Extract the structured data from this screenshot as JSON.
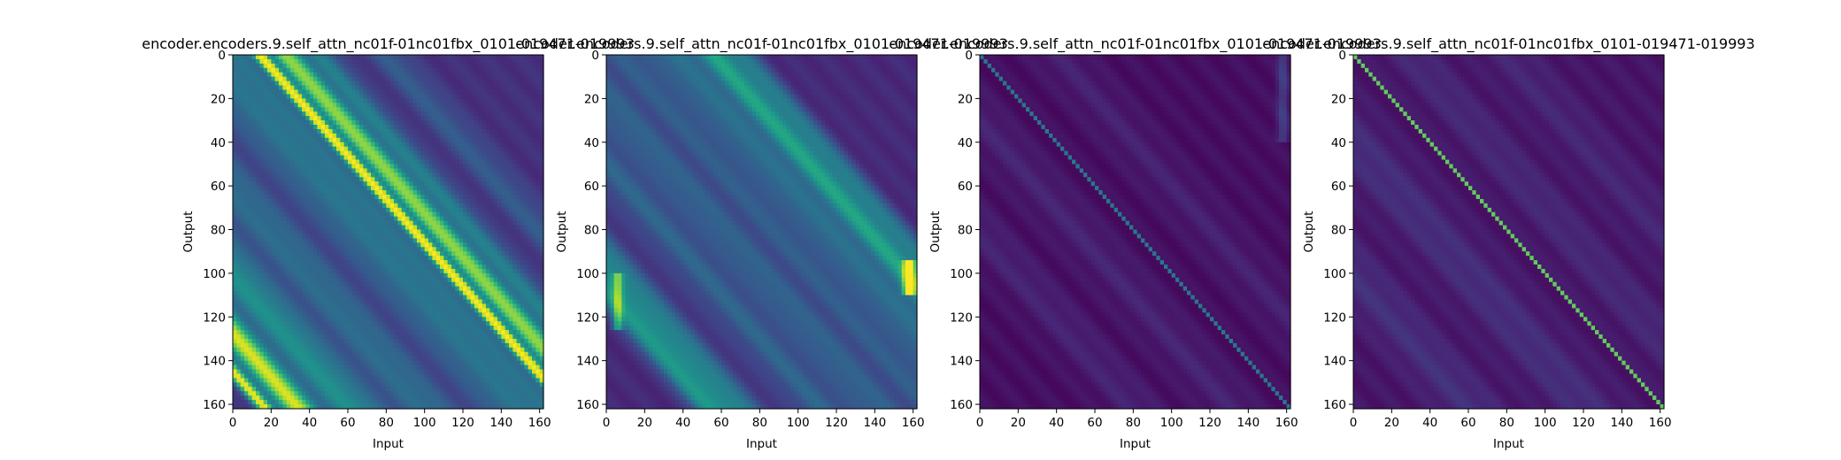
{
  "chart_data": [
    {
      "type": "heatmap",
      "title": "encoder.encoders.9.self_attn_nc01f-01nc01fbx_0101-019471-019993",
      "xlabel": "Input",
      "ylabel": "Output",
      "xlim": [
        0,
        162
      ],
      "ylim": [
        162,
        0
      ],
      "xticks": [
        0,
        20,
        40,
        60,
        80,
        100,
        120,
        140,
        160
      ],
      "yticks": [
        0,
        20,
        40,
        60,
        80,
        100,
        120,
        140,
        160
      ],
      "colormap": "viridis",
      "diagonal_bands": [
        {
          "offset": 14,
          "width": 2.6,
          "strength": 0.95
        },
        {
          "offset": 30,
          "width": 4.0,
          "strength": 0.55
        },
        {
          "offset": 24,
          "width": 3.5,
          "strength": 0.4
        },
        {
          "offset": 45,
          "width": 6.0,
          "strength": 0.3
        },
        {
          "offset": 0,
          "width": 9.0,
          "strength": 0.22
        },
        {
          "offset": -20,
          "width": 10.0,
          "strength": 0.2
        },
        {
          "offset": -60,
          "width": 12.0,
          "strength": 0.22
        },
        {
          "offset": -100,
          "width": 12.0,
          "strength": 0.35
        },
        {
          "offset": -128,
          "width": 6.0,
          "strength": 0.8
        },
        {
          "offset": -145,
          "width": 3.0,
          "strength": 0.85
        },
        {
          "offset": 80,
          "width": 8.0,
          "strength": 0.15
        }
      ],
      "background": 0.12,
      "lower_triangle_dim": 0.35
    },
    {
      "type": "heatmap",
      "title": "encoder.encoders.9.self_attn_nc01f-01nc01fbx_0101-019471-019993",
      "xlabel": "Input",
      "ylabel": "Output",
      "xlim": [
        0,
        162
      ],
      "ylim": [
        162,
        0
      ],
      "xticks": [
        0,
        20,
        40,
        60,
        80,
        100,
        120,
        140,
        160
      ],
      "yticks": [
        0,
        20,
        40,
        60,
        80,
        100,
        120,
        140,
        160
      ],
      "colormap": "viridis",
      "diagonal_bands": [
        {
          "offset": 55,
          "width": 6.0,
          "strength": 0.45
        },
        {
          "offset": 70,
          "width": 6.0,
          "strength": 0.3
        },
        {
          "offset": 35,
          "width": 8.0,
          "strength": 0.25
        },
        {
          "offset": 10,
          "width": 10.0,
          "strength": 0.18
        },
        {
          "offset": -20,
          "width": 10.0,
          "strength": 0.2
        },
        {
          "offset": -50,
          "width": 10.0,
          "strength": 0.2
        },
        {
          "offset": -95,
          "width": 10.0,
          "strength": 0.35
        },
        {
          "offset": -110,
          "width": 5.0,
          "strength": 0.3
        }
      ],
      "background": 0.1,
      "edge_column_highlight": {
        "column": 158,
        "rows": [
          95,
          110
        ],
        "strength": 0.9
      },
      "left_column_highlight": {
        "column": 6,
        "rows": [
          100,
          125
        ],
        "strength": 0.4
      }
    },
    {
      "type": "heatmap",
      "title": "encoder.encoders.9.self_attn_nc01f-01nc01fbx_0101-019471-019993",
      "xlabel": "Input",
      "ylabel": "Output",
      "xlim": [
        0,
        162
      ],
      "ylim": [
        162,
        0
      ],
      "xticks": [
        0,
        20,
        40,
        60,
        80,
        100,
        120,
        140,
        160
      ],
      "yticks": [
        0,
        20,
        40,
        60,
        80,
        100,
        120,
        140,
        160
      ],
      "colormap": "viridis",
      "diagonal_bands": [
        {
          "offset": 0,
          "width": 0.5,
          "strength": 0.35
        },
        {
          "offset": -30,
          "width": 10.0,
          "strength": 0.06
        },
        {
          "offset": -80,
          "width": 10.0,
          "strength": 0.06
        },
        {
          "offset": 40,
          "width": 10.0,
          "strength": 0.05
        }
      ],
      "background": 0.02,
      "edge_column_highlight": {
        "column": 158,
        "rows": [
          0,
          40
        ],
        "strength": 0.15
      }
    },
    {
      "type": "heatmap",
      "title": "encoder.encoders.9.self_attn_nc01f-01nc01fbx_0101-019471-019993",
      "xlabel": "Input",
      "ylabel": "Output",
      "xlim": [
        0,
        162
      ],
      "ylim": [
        162,
        0
      ],
      "xticks": [
        0,
        20,
        40,
        60,
        80,
        100,
        120,
        140,
        160
      ],
      "yticks": [
        0,
        20,
        40,
        60,
        80,
        100,
        120,
        140,
        160
      ],
      "colormap": "viridis",
      "diagonal_bands": [
        {
          "offset": 0,
          "width": 0.6,
          "strength": 0.7
        },
        {
          "offset": -40,
          "width": 12.0,
          "strength": 0.08
        },
        {
          "offset": -100,
          "width": 12.0,
          "strength": 0.08
        },
        {
          "offset": 30,
          "width": 10.0,
          "strength": 0.06
        },
        {
          "offset": 80,
          "width": 10.0,
          "strength": 0.05
        }
      ],
      "background": 0.04
    }
  ]
}
